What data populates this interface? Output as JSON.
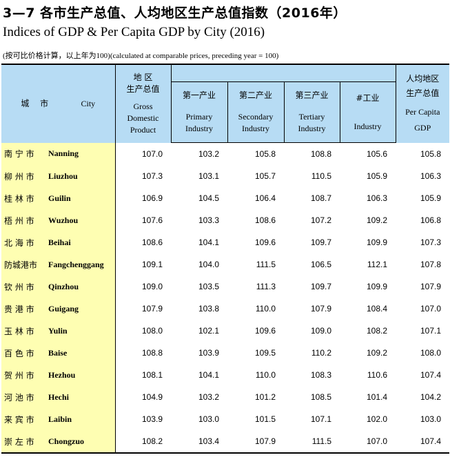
{
  "title_cn": "3—7  各市生产总值、人均地区生产总值指数（2016年）",
  "title_en": "Indices of GDP & Per Capita GDP by City (2016)",
  "note": "(按可比价格计算，以上年为100)(calculated at comparable prices, preceding year = 100)",
  "header": {
    "city_cn": "城 市",
    "city_en": "City",
    "gdp_cn": "地  区",
    "gdp_cn2": "生产总值",
    "gdp_en1": "Gross",
    "gdp_en2": "Domestic",
    "gdp_en3": "Product",
    "primary_cn": "第一产业",
    "primary_en1": "Primary",
    "primary_en2": "Industry",
    "secondary_cn": "第二产业",
    "secondary_en1": "Secondary",
    "secondary_en2": "Industry",
    "tertiary_cn": "第三产业",
    "tertiary_en1": "Tertiary",
    "tertiary_en2": "Industry",
    "industry_cn": "#工业",
    "industry_en": "Industry",
    "percap_cn1": "人均地区",
    "percap_cn2": "生产总值",
    "percap_en1": "Per Capita",
    "percap_en2": "GDP"
  },
  "rows": [
    {
      "cn": "南 宁 市",
      "en": "Nanning",
      "gdp": "107.0",
      "primary": "103.2",
      "secondary": "105.8",
      "tertiary": "108.8",
      "industry": "105.6",
      "percap": "105.8"
    },
    {
      "cn": "柳 州 市",
      "en": "Liuzhou",
      "gdp": "107.3",
      "primary": "103.1",
      "secondary": "105.7",
      "tertiary": "110.5",
      "industry": "105.9",
      "percap": "106.3"
    },
    {
      "cn": "桂 林 市",
      "en": "Guilin",
      "gdp": "106.9",
      "primary": "104.5",
      "secondary": "106.4",
      "tertiary": "108.7",
      "industry": "106.3",
      "percap": "105.9"
    },
    {
      "cn": "梧 州 市",
      "en": "Wuzhou",
      "gdp": "107.6",
      "primary": "103.3",
      "secondary": "108.6",
      "tertiary": "107.2",
      "industry": "109.2",
      "percap": "106.8"
    },
    {
      "cn": "北 海 市",
      "en": "Beihai",
      "gdp": "108.6",
      "primary": "104.1",
      "secondary": "109.6",
      "tertiary": "109.7",
      "industry": "109.9",
      "percap": "107.3"
    },
    {
      "cn": "防城港市",
      "en": "Fangchenggang",
      "gdp": "109.1",
      "primary": "104.0",
      "secondary": "111.5",
      "tertiary": "106.5",
      "industry": "112.1",
      "percap": "107.8"
    },
    {
      "cn": "钦 州 市",
      "en": "Qinzhou",
      "gdp": "109.0",
      "primary": "103.5",
      "secondary": "111.3",
      "tertiary": "109.7",
      "industry": "109.9",
      "percap": "107.9"
    },
    {
      "cn": "贵 港 市",
      "en": "Guigang",
      "gdp": "107.9",
      "primary": "103.8",
      "secondary": "110.0",
      "tertiary": "107.9",
      "industry": "108.4",
      "percap": "107.0"
    },
    {
      "cn": "玉 林 市",
      "en": "Yulin",
      "gdp": "108.0",
      "primary": "102.1",
      "secondary": "109.6",
      "tertiary": "109.0",
      "industry": "108.2",
      "percap": "107.1"
    },
    {
      "cn": "百 色 市",
      "en": "Baise",
      "gdp": "108.8",
      "primary": "103.9",
      "secondary": "109.5",
      "tertiary": "110.2",
      "industry": "109.2",
      "percap": "108.0"
    },
    {
      "cn": "贺 州 市",
      "en": "Hezhou",
      "gdp": "108.1",
      "primary": "104.1",
      "secondary": "110.0",
      "tertiary": "108.3",
      "industry": "110.6",
      "percap": "107.4"
    },
    {
      "cn": "河 池 市",
      "en": "Hechi",
      "gdp": "104.9",
      "primary": "103.2",
      "secondary": "101.2",
      "tertiary": "108.5",
      "industry": "101.4",
      "percap": "104.2"
    },
    {
      "cn": "来 宾 市",
      "en": "Laibin",
      "gdp": "103.9",
      "primary": "103.0",
      "secondary": "101.5",
      "tertiary": "107.1",
      "industry": "102.0",
      "percap": "103.0"
    },
    {
      "cn": "崇 左 市",
      "en": "Chongzuo",
      "gdp": "108.2",
      "primary": "103.4",
      "secondary": "107.9",
      "tertiary": "111.5",
      "industry": "107.0",
      "percap": "107.4"
    }
  ],
  "colors": {
    "header_bg": "#b7dcf4",
    "city_bg": "#fefeb2"
  }
}
